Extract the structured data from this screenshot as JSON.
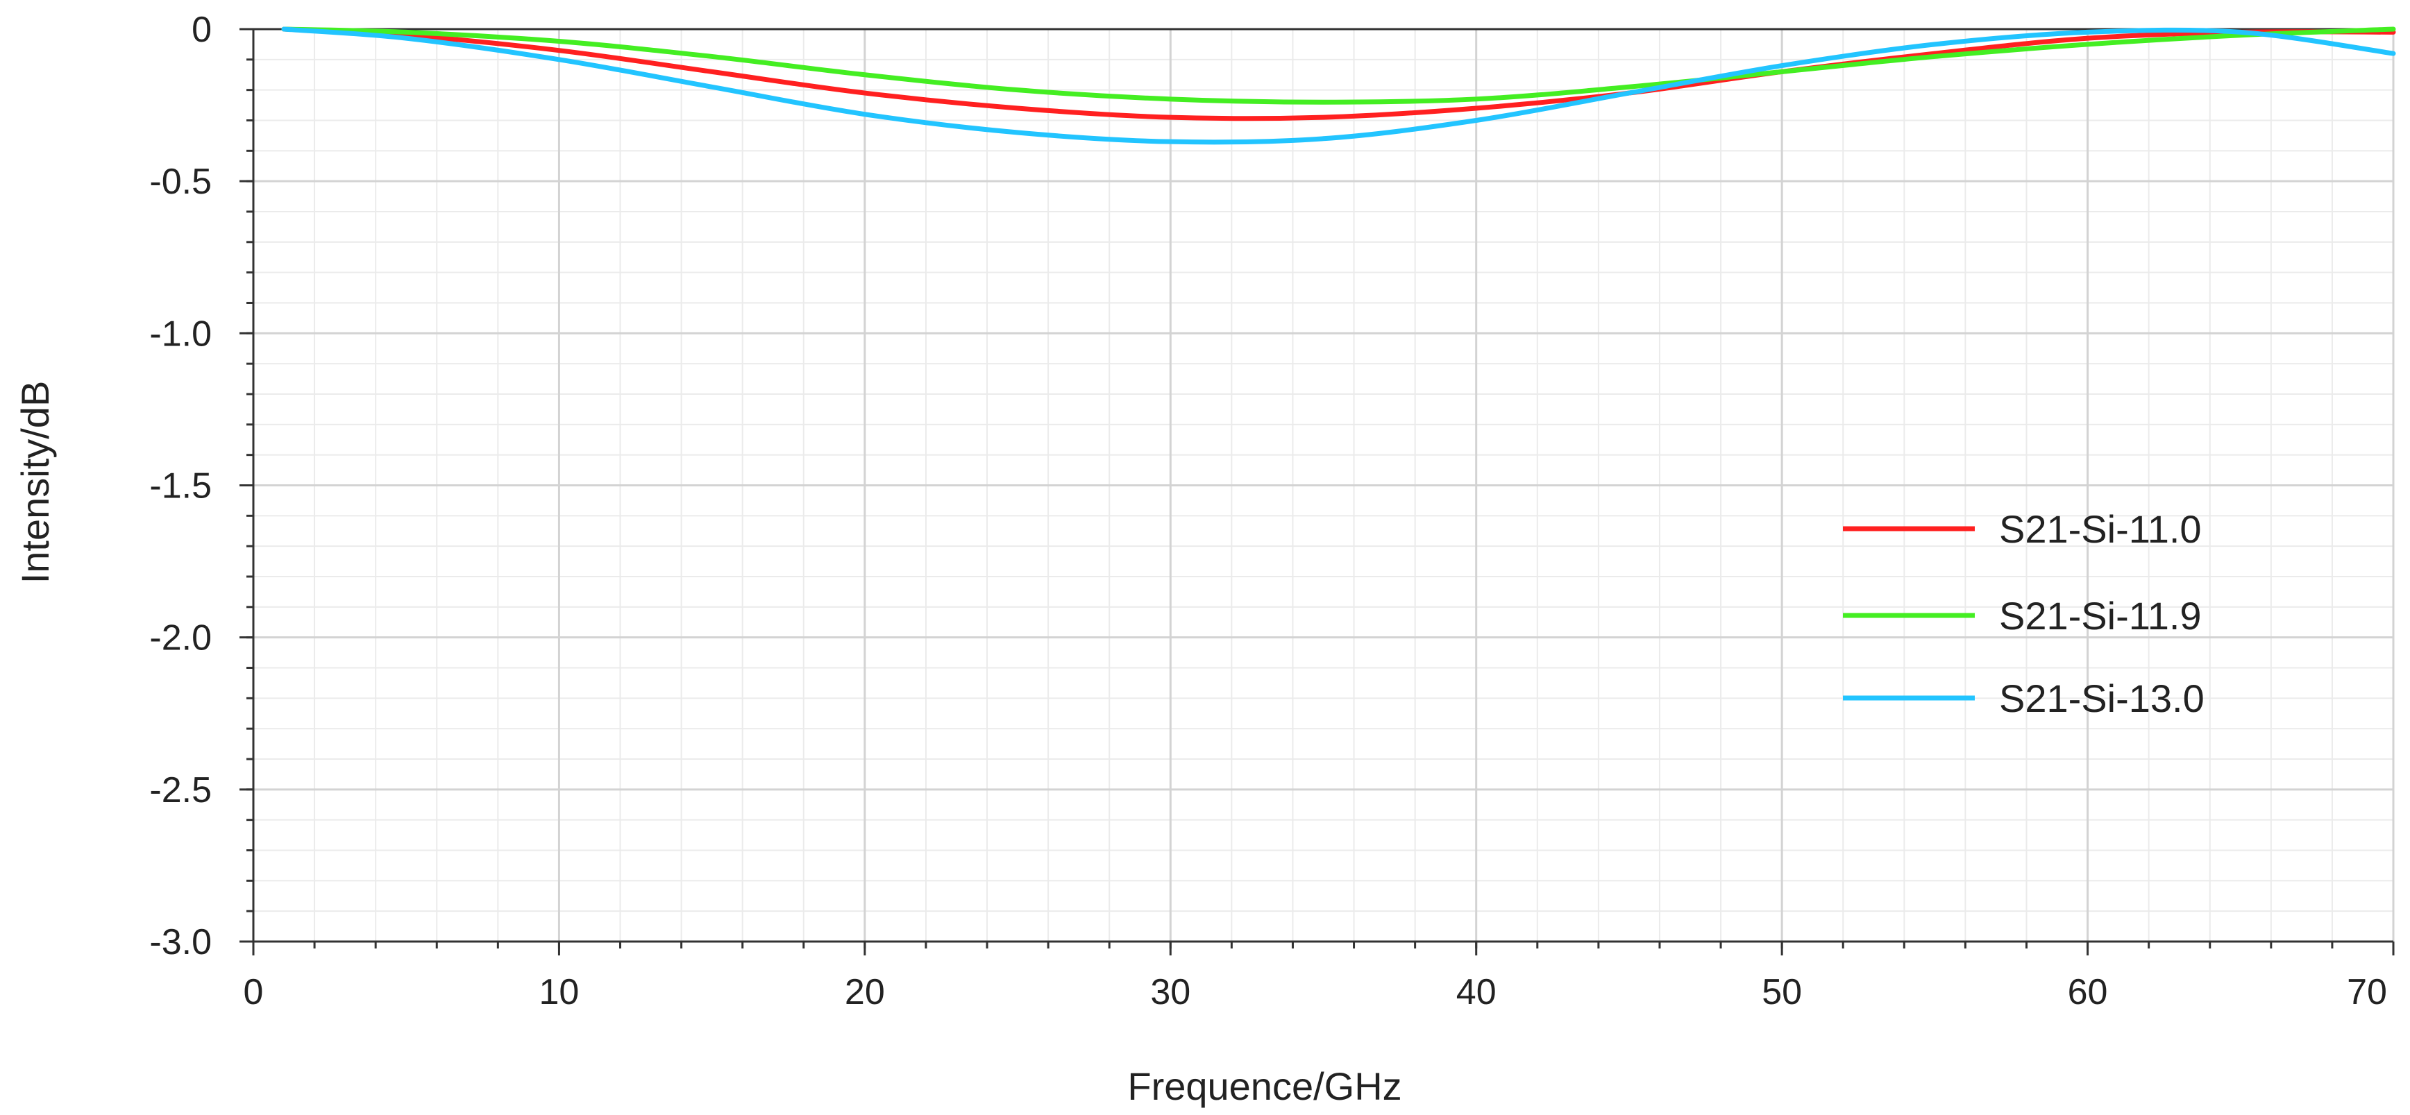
{
  "chart_data": {
    "type": "line",
    "title": "",
    "xlabel": "Frequence/GHz",
    "ylabel": "Intensity/dB",
    "xlim": [
      0,
      70
    ],
    "ylim": [
      -3.0,
      0
    ],
    "x_ticks": [
      0,
      10,
      20,
      30,
      40,
      50,
      60,
      70
    ],
    "x_tick_labels": [
      "0",
      "10",
      "20",
      "30",
      "40",
      "50",
      "60",
      "70"
    ],
    "y_ticks": [
      0,
      -0.5,
      -1.0,
      -1.5,
      -2.0,
      -2.5,
      -3.0
    ],
    "y_tick_labels": [
      "0",
      "-0.5",
      "-1.0",
      "-1.5",
      "-2.0",
      "-2.5",
      "-3.0"
    ],
    "grid": true,
    "legend_position": "right",
    "x": [
      1,
      5,
      10,
      15,
      20,
      25,
      30,
      35,
      40,
      45,
      50,
      55,
      60,
      65,
      70
    ],
    "series": [
      {
        "name": "S21-Si-11.0",
        "color": "#ff2020",
        "values": [
          0,
          -0.02,
          -0.07,
          -0.14,
          -0.21,
          -0.26,
          -0.29,
          -0.29,
          -0.26,
          -0.21,
          -0.14,
          -0.08,
          -0.03,
          -0.01,
          -0.01
        ]
      },
      {
        "name": "S21-Si-11.9",
        "color": "#44ee22",
        "values": [
          0,
          -0.01,
          -0.04,
          -0.09,
          -0.15,
          -0.2,
          -0.23,
          -0.24,
          -0.23,
          -0.19,
          -0.14,
          -0.09,
          -0.05,
          -0.02,
          0
        ]
      },
      {
        "name": "S21-Si-13.0",
        "color": "#22c4ff",
        "values": [
          0,
          -0.03,
          -0.1,
          -0.19,
          -0.28,
          -0.34,
          -0.37,
          -0.36,
          -0.3,
          -0.21,
          -0.12,
          -0.05,
          -0.01,
          -0.01,
          -0.08
        ]
      }
    ]
  }
}
